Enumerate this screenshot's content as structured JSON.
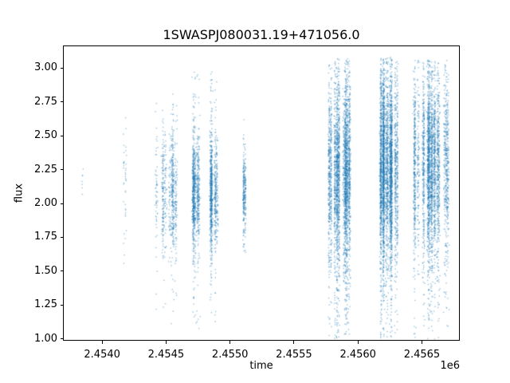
{
  "chart_data": {
    "type": "scatter",
    "title": "1SWASPJ080031.19+471056.0",
    "xlabel": "time",
    "ylabel": "flux",
    "x_offset_label": "1e6",
    "marker_color": "#1f77b4",
    "marker_size_px": 1.4,
    "grid": false,
    "legend": null,
    "xlim": [
      2453700,
      2456790
    ],
    "ylim": [
      0.994,
      3.159
    ],
    "x_ticks": [
      {
        "value": 2454000,
        "label": "2.4540"
      },
      {
        "value": 2454500,
        "label": "2.4545"
      },
      {
        "value": 2455000,
        "label": "2.4550"
      },
      {
        "value": 2455500,
        "label": "2.4555"
      },
      {
        "value": 2456000,
        "label": "2.4560"
      },
      {
        "value": 2456500,
        "label": "2.4565"
      }
    ],
    "y_ticks": [
      {
        "value": 1.0,
        "label": "1.00"
      },
      {
        "value": 1.25,
        "label": "1.25"
      },
      {
        "value": 1.5,
        "label": "1.50"
      },
      {
        "value": 1.75,
        "label": "1.75"
      },
      {
        "value": 2.0,
        "label": "2.00"
      },
      {
        "value": 2.25,
        "label": "2.25"
      },
      {
        "value": 2.5,
        "label": "2.50"
      },
      {
        "value": 2.75,
        "label": "2.75"
      },
      {
        "value": 3.0,
        "label": "3.00"
      }
    ],
    "clusters": [
      {
        "t_start": 2453837,
        "t_end": 2453850,
        "n": 7,
        "nights": 1,
        "flux_mean": 2.25,
        "flux_sd": 0.16,
        "flux_min": 2.05,
        "flux_max": 2.5,
        "tail_frac": 0.0
      },
      {
        "t_start": 2454167,
        "t_end": 2454192,
        "n": 40,
        "nights": 2,
        "flux_mean": 2.15,
        "flux_sd": 0.3,
        "flux_min": 1.55,
        "flux_max": 2.72,
        "tail_frac": 0.1
      },
      {
        "t_start": 2454342,
        "t_end": 2454585,
        "n": 700,
        "nights": 11,
        "flux_mean": 2.08,
        "flux_sd": 0.22,
        "flux_min": 1.1,
        "flux_max": 2.85,
        "tail_frac": 0.06
      },
      {
        "t_start": 2454709,
        "t_end": 2454909,
        "n": 1800,
        "nights": 10,
        "flux_mean": 2.08,
        "flux_sd": 0.2,
        "flux_min": 1.07,
        "flux_max": 2.97,
        "tail_frac": 0.06
      },
      {
        "t_start": 2455102,
        "t_end": 2455120,
        "n": 280,
        "nights": 2,
        "flux_mean": 2.1,
        "flux_sd": 0.16,
        "flux_min": 1.63,
        "flux_max": 2.69,
        "tail_frac": 0.08
      },
      {
        "t_start": 2455743,
        "t_end": 2455943,
        "n": 3200,
        "nights": 13,
        "flux_mean": 2.22,
        "flux_sd": 0.33,
        "flux_min": 1.0,
        "flux_max": 3.07,
        "tail_frac": 0.07
      },
      {
        "t_start": 2456161,
        "t_end": 2456366,
        "n": 3800,
        "nights": 13,
        "flux_mean": 2.25,
        "flux_sd": 0.34,
        "flux_min": 1.0,
        "flux_max": 3.08,
        "tail_frac": 0.07
      },
      {
        "t_start": 2456422,
        "t_end": 2456709,
        "n": 3400,
        "nights": 14,
        "flux_mean": 2.28,
        "flux_sd": 0.32,
        "flux_min": 1.0,
        "flux_max": 3.06,
        "tail_frac": 0.07
      }
    ]
  }
}
